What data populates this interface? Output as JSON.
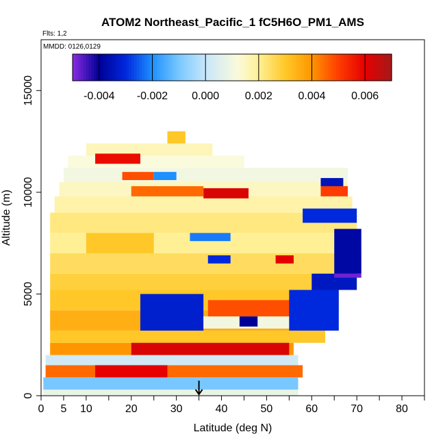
{
  "chart_data": {
    "type": "heatmap",
    "title": "ATOM2 Northeast_Pacific_1 fC5H6O_PM1_AMS",
    "flights_note": "Flts: 1,2",
    "dates_note": "MMDD: 0126,0129",
    "xlabel": "Latitude (deg N)",
    "ylabel": "Altitude (m)",
    "xlim": [
      0,
      85
    ],
    "ylim": [
      0,
      17500
    ],
    "x_ticks": [
      0,
      5,
      10,
      20,
      30,
      40,
      50,
      60,
      70,
      80
    ],
    "x_minor_ticks": [
      15,
      25,
      35,
      45,
      55,
      65,
      75,
      85
    ],
    "y_ticks": [
      0,
      5000,
      10000,
      15000
    ],
    "colorbar": {
      "min": -0.005,
      "max": 0.007,
      "ticks": [
        -0.004,
        -0.002,
        0.0,
        0.002,
        0.004,
        0.006
      ],
      "tick_labels": [
        "-0.004",
        "-0.002",
        "0.000",
        "0.002",
        "0.004",
        "0.006"
      ]
    },
    "marker": {
      "x": 35,
      "note": "arrow at latitude ~35"
    },
    "altitude_bands": [
      {
        "y0": 0,
        "y1": 300,
        "x0": 0.5,
        "x1": 57,
        "value": 0.0008
      },
      {
        "y0": 300,
        "y1": 900,
        "x0": 0.5,
        "x1": 57,
        "value": -0.001
      },
      {
        "y0": 900,
        "y1": 1500,
        "x0": 1,
        "x1": 58,
        "value": 0.0045
      },
      {
        "y0": 1500,
        "y1": 2000,
        "x0": 1,
        "x1": 57,
        "value": 0.0002
      },
      {
        "y0": 2000,
        "y1": 2600,
        "x0": 2,
        "x1": 56,
        "value": 0.004
      },
      {
        "y0": 2600,
        "y1": 3200,
        "x0": 2,
        "x1": 63,
        "value": 0.003
      },
      {
        "y0": 3200,
        "y1": 4200,
        "x0": 2,
        "x1": 65,
        "value": 0.0035
      },
      {
        "y0": 4200,
        "y1": 5200,
        "x0": 2,
        "x1": 66,
        "value": 0.003
      },
      {
        "y0": 5200,
        "y1": 6000,
        "x0": 2,
        "x1": 70,
        "value": 0.0028
      },
      {
        "y0": 6000,
        "y1": 7000,
        "x0": 2,
        "x1": 71,
        "value": 0.0025
      },
      {
        "y0": 7000,
        "y1": 8000,
        "x0": 2,
        "x1": 70,
        "value": 0.002
      },
      {
        "y0": 8000,
        "y1": 9000,
        "x0": 2,
        "x1": 70,
        "value": 0.0022
      },
      {
        "y0": 9000,
        "y1": 9800,
        "x0": 3,
        "x1": 69,
        "value": 0.0018
      },
      {
        "y0": 9800,
        "y1": 10500,
        "x0": 4,
        "x1": 68,
        "value": 0.0015
      },
      {
        "y0": 10500,
        "y1": 11200,
        "x0": 5,
        "x1": 68,
        "value": 0.001
      },
      {
        "y0": 11200,
        "y1": 11800,
        "x0": 6,
        "x1": 45,
        "value": 0.0012
      },
      {
        "y0": 11800,
        "y1": 12400,
        "x0": 10,
        "x1": 38,
        "value": 0.0016
      },
      {
        "y0": 12400,
        "y1": 13000,
        "x0": 28,
        "x1": 32,
        "value": 0.003
      }
    ],
    "patches": [
      {
        "x0": 12,
        "x1": 28,
        "y0": 900,
        "y1": 1500,
        "value": 0.006
      },
      {
        "x0": 20,
        "x1": 55,
        "y0": 2000,
        "y1": 2600,
        "value": 0.0062
      },
      {
        "x0": 22,
        "x1": 36,
        "y0": 3200,
        "y1": 5000,
        "value": -0.0032
      },
      {
        "x0": 36,
        "x1": 58,
        "y0": 3300,
        "y1": 3900,
        "value": 0.001
      },
      {
        "x0": 44,
        "x1": 48,
        "y0": 3400,
        "y1": 3900,
        "value": -0.004
      },
      {
        "x0": 37,
        "x1": 60,
        "y0": 3900,
        "y1": 4700,
        "value": 0.0048
      },
      {
        "x0": 55,
        "x1": 66,
        "y0": 3200,
        "y1": 5200,
        "value": -0.003
      },
      {
        "x0": 60,
        "x1": 70,
        "y0": 5200,
        "y1": 6000,
        "value": -0.0034
      },
      {
        "x0": 65,
        "x1": 71,
        "y0": 5800,
        "y1": 6000,
        "value": -0.0048
      },
      {
        "x0": 65,
        "x1": 71,
        "y0": 6000,
        "y1": 8200,
        "value": -0.0038
      },
      {
        "x0": 37,
        "x1": 42,
        "y0": 6500,
        "y1": 6900,
        "value": -0.003
      },
      {
        "x0": 52,
        "x1": 56,
        "y0": 6500,
        "y1": 6900,
        "value": 0.006
      },
      {
        "x0": 33,
        "x1": 42,
        "y0": 7600,
        "y1": 8000,
        "value": -0.0022
      },
      {
        "x0": 10,
        "x1": 25,
        "y0": 7000,
        "y1": 8000,
        "value": 0.003
      },
      {
        "x0": 58,
        "x1": 70,
        "y0": 8500,
        "y1": 9200,
        "value": -0.003
      },
      {
        "x0": 36,
        "x1": 46,
        "y0": 9700,
        "y1": 10200,
        "value": 0.0062
      },
      {
        "x0": 20,
        "x1": 36,
        "y0": 9800,
        "y1": 10300,
        "value": 0.0045
      },
      {
        "x0": 62,
        "x1": 68,
        "y0": 9800,
        "y1": 10300,
        "value": 0.005
      },
      {
        "x0": 18,
        "x1": 25,
        "y0": 10600,
        "y1": 11000,
        "value": 0.0048
      },
      {
        "x0": 25,
        "x1": 30,
        "y0": 10600,
        "y1": 11000,
        "value": -0.002
      },
      {
        "x0": 12,
        "x1": 22,
        "y0": 11400,
        "y1": 11900,
        "value": 0.0058
      },
      {
        "x0": 62,
        "x1": 67,
        "y0": 10300,
        "y1": 10700,
        "value": -0.0035
      }
    ]
  }
}
